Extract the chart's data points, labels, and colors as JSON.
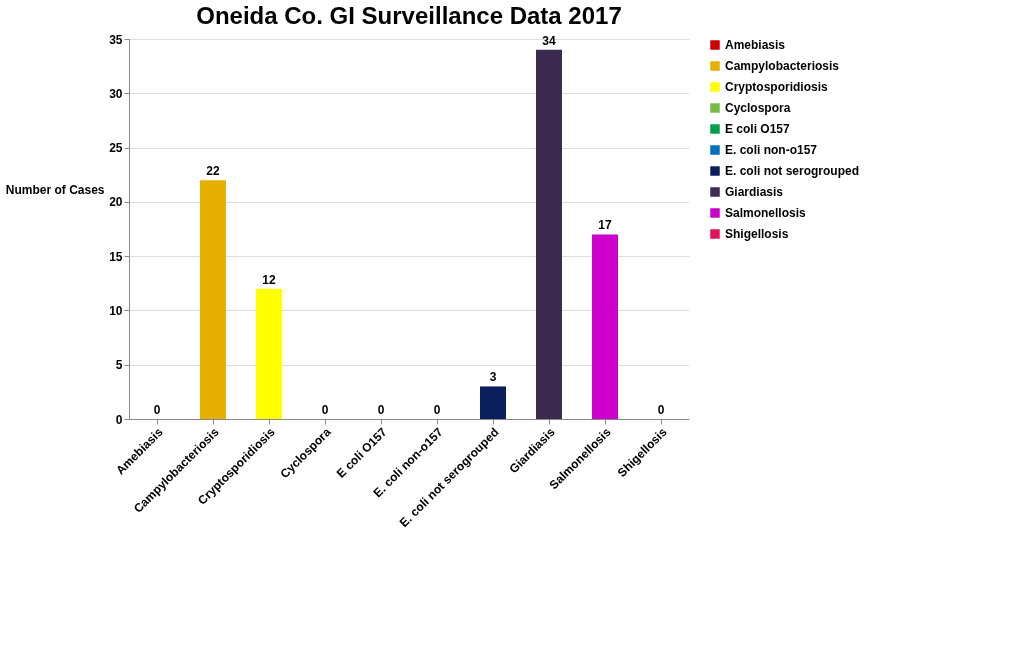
{
  "chart_data": {
    "type": "bar",
    "title": "Oneida Co. GI Surveillance Data 2017",
    "ylabel": "Number of Cases",
    "categories": [
      "Amebiasis",
      "Campylobacteriosis",
      "Cryptosporidiosis",
      "Cyclospora",
      "E coli O157",
      "E. coli non-o157",
      "E. coli not serogrouped",
      "Giardiasis",
      "Salmonellosis",
      "Shigellosis"
    ],
    "series": [
      {
        "name": "Amebiasis",
        "color": "#cc0000",
        "values": [
          0,
          null,
          null,
          null,
          null,
          null,
          null,
          null,
          null,
          null
        ]
      },
      {
        "name": "Campylobacteriosis",
        "color": "#e6b000",
        "values": [
          null,
          22,
          null,
          null,
          null,
          null,
          null,
          null,
          null,
          null
        ]
      },
      {
        "name": "Cryptosporidiosis",
        "color": "#ffff00",
        "values": [
          null,
          null,
          12,
          null,
          null,
          null,
          null,
          null,
          null,
          null
        ]
      },
      {
        "name": "Cyclospora",
        "color": "#77bb44",
        "values": [
          null,
          null,
          null,
          0,
          null,
          null,
          null,
          null,
          null,
          null
        ]
      },
      {
        "name": "E coli O157",
        "color": "#00a050",
        "values": [
          null,
          null,
          null,
          null,
          0,
          null,
          null,
          null,
          null,
          null
        ]
      },
      {
        "name": "E. coli non-o157",
        "color": "#0070c0",
        "values": [
          null,
          null,
          null,
          null,
          null,
          0,
          null,
          null,
          null,
          null
        ]
      },
      {
        "name": "E. coli not serogrouped",
        "color": "#0a1f5c",
        "values": [
          null,
          null,
          null,
          null,
          null,
          null,
          3,
          null,
          null,
          null
        ]
      },
      {
        "name": "Giardiasis",
        "color": "#3d2b4f",
        "values": [
          null,
          null,
          null,
          null,
          null,
          null,
          null,
          34,
          null,
          null
        ]
      },
      {
        "name": "Salmonellosis",
        "color": "#cc00cc",
        "values": [
          null,
          null,
          null,
          null,
          null,
          null,
          null,
          null,
          17,
          null
        ]
      },
      {
        "name": "Shigellosis",
        "color": "#e0105a",
        "values": [
          null,
          null,
          null,
          null,
          null,
          null,
          null,
          null,
          null,
          0
        ]
      }
    ],
    "ylim": [
      0,
      35
    ],
    "yticks": [
      0,
      5,
      10,
      15,
      20,
      25,
      30,
      35
    ],
    "grid": "y",
    "legend": "right",
    "data_labels": true
  }
}
